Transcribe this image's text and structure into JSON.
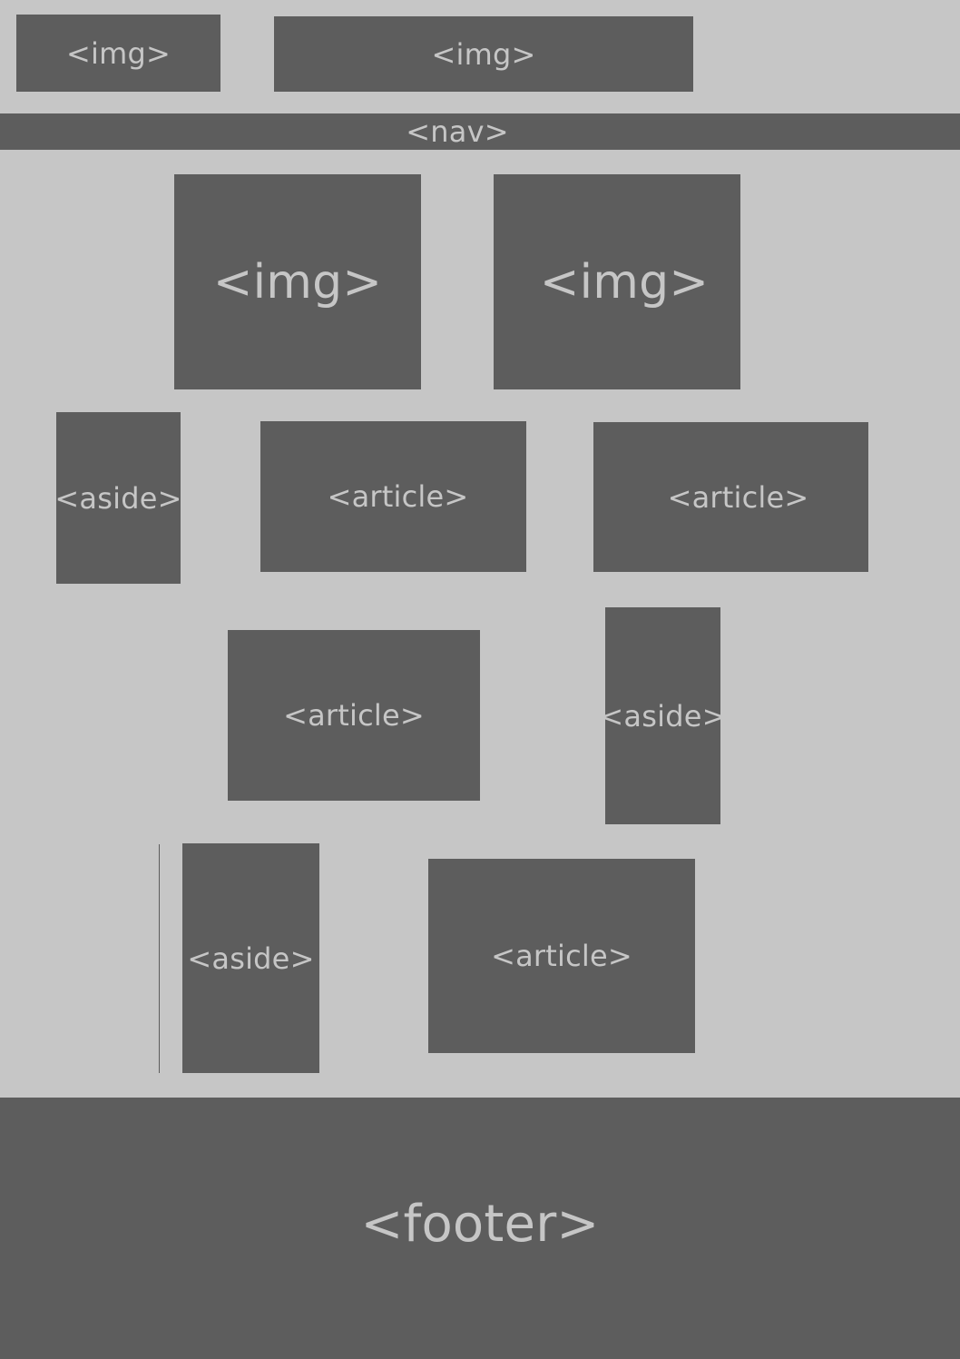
{
  "colors": {
    "background": "#c6c6c6",
    "block": "#5d5d5d",
    "label": "#c6c6c6"
  },
  "wireframe": {
    "header_img_left": "<img>",
    "header_img_right": "<img>",
    "nav": "<nav>",
    "hero_img_left": "<img>",
    "hero_img_right": "<img>",
    "row1_aside": "<aside>",
    "row1_article_left": "<article>",
    "row1_article_right": "<article>",
    "row2_article": "<article>",
    "row2_aside": "<aside>",
    "row3_aside": "<aside>",
    "row3_article": "<article>",
    "footer": "<footer>"
  }
}
